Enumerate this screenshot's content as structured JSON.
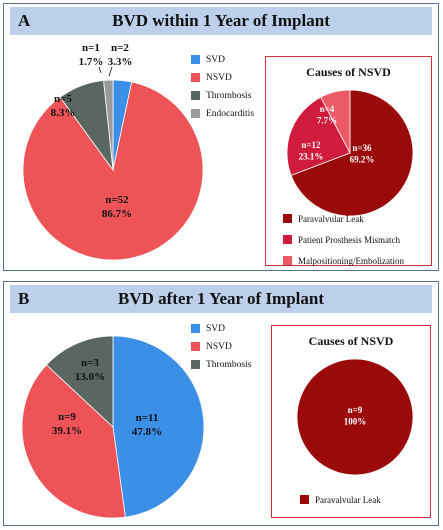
{
  "colors": {
    "svd": "#3b8fe6",
    "nsvd": "#ee5358",
    "thrombosis": "#5a6660",
    "endocarditis": "#9a9a9a",
    "paravalvular": "#9b0a0a",
    "ppm": "#d01c3c",
    "malpositioning": "#ec5a66",
    "panel_border": "#5b6f88",
    "header_bg": "#bcd0ec",
    "subbox_border": "#d0303a"
  },
  "panelA": {
    "letter": "A",
    "title": "BVD within 1 Year of Implant",
    "legend": [
      {
        "label": "SVD",
        "color": "#3b8fe6",
        "icon": "square"
      },
      {
        "label": "NSVD",
        "color": "#ee5358",
        "icon": "square"
      },
      {
        "label": "Thrombosis",
        "color": "#5a6660",
        "icon": "square"
      },
      {
        "label": "Endocarditis",
        "color": "#9a9a9a",
        "icon": "square"
      }
    ],
    "sub_title": "Causes of NSVD",
    "sub_legend": [
      {
        "label": "Paravalvular Leak",
        "color": "#9b0a0a"
      },
      {
        "label": "Patient Prosthesis Mismatch",
        "color": "#d01c3c"
      },
      {
        "label": "Malpositioning/Embolization",
        "color": "#ec5a66"
      }
    ]
  },
  "panelB": {
    "letter": "B",
    "title": "BVD after 1 Year of Implant",
    "legend": [
      {
        "label": "SVD",
        "color": "#3b8fe6",
        "icon": "square"
      },
      {
        "label": "NSVD",
        "color": "#ee5358",
        "icon": "square"
      },
      {
        "label": "Thrombosis",
        "color": "#5a6660",
        "icon": "square"
      }
    ],
    "sub_title": "Causes of NSVD",
    "sub_legend": [
      {
        "label": "Paravalvular Leak",
        "color": "#9b0a0a"
      }
    ]
  },
  "chart_data": [
    {
      "type": "pie",
      "title": "BVD within 1 Year of Implant",
      "categories": [
        "SVD",
        "NSVD",
        "Thrombosis",
        "Endocarditis"
      ],
      "values": [
        2,
        52,
        5,
        1
      ],
      "labels": [
        {
          "n": "n=2",
          "pct": "3.3%"
        },
        {
          "n": "n=52",
          "pct": "86.7%"
        },
        {
          "n": "n=5",
          "pct": "8.3%"
        },
        {
          "n": "n=1",
          "pct": "1.7%"
        }
      ],
      "colors": [
        "#3b8fe6",
        "#ee5358",
        "#5a6660",
        "#9a9a9a"
      ],
      "legend_placement": "right"
    },
    {
      "type": "pie",
      "title": "Causes of NSVD",
      "categories": [
        "Paravalvular Leak",
        "Patient Prosthesis Mismatch",
        "Malpositioning/Embolization"
      ],
      "values": [
        36,
        12,
        4
      ],
      "labels": [
        {
          "n": "n=36",
          "pct": "69.2%"
        },
        {
          "n": "n=12",
          "pct": "23.1%"
        },
        {
          "n": "n=4",
          "pct": "7.7%"
        }
      ],
      "colors": [
        "#9b0a0a",
        "#d01c3c",
        "#ec5a66"
      ],
      "legend_placement": "bottom"
    },
    {
      "type": "pie",
      "title": "BVD after 1 Year of Implant",
      "categories": [
        "SVD",
        "NSVD",
        "Thrombosis"
      ],
      "values": [
        11,
        9,
        3
      ],
      "labels": [
        {
          "n": "n=11",
          "pct": "47.8%"
        },
        {
          "n": "n=9",
          "pct": "39.1%"
        },
        {
          "n": "n=3",
          "pct": "13.0%"
        }
      ],
      "colors": [
        "#3b8fe6",
        "#ee5358",
        "#5a6660"
      ],
      "legend_placement": "right"
    },
    {
      "type": "pie",
      "title": "Causes of NSVD",
      "categories": [
        "Paravalvular Leak"
      ],
      "values": [
        9
      ],
      "labels": [
        {
          "n": "n=9",
          "pct": "100%"
        }
      ],
      "colors": [
        "#9b0a0a"
      ],
      "legend_placement": "bottom"
    }
  ]
}
